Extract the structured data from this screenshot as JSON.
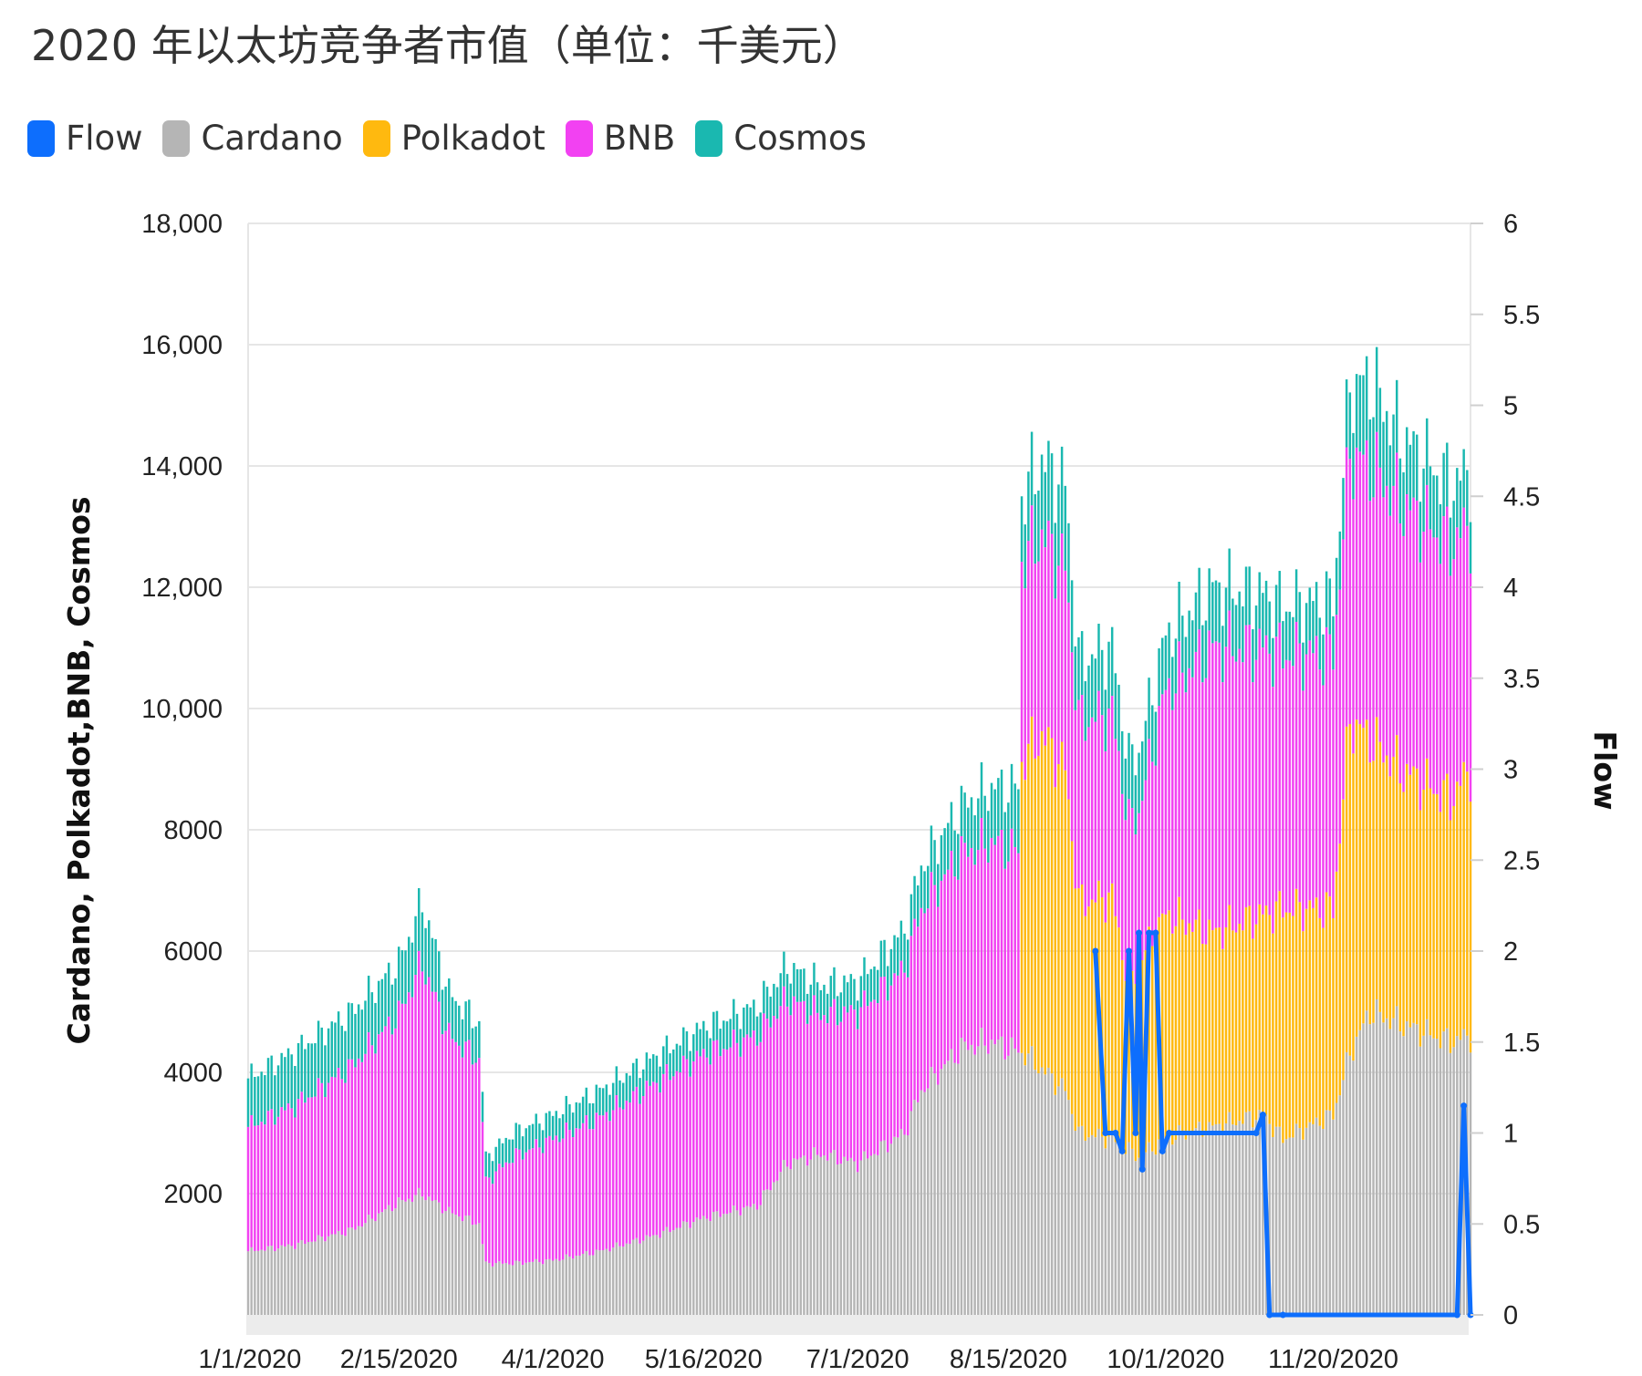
{
  "chart_data": {
    "type": "bar",
    "title": "2020 年以太坊竞争者市值（单位：千美元）",
    "stacked": true,
    "legend": [
      {
        "name": "Flow",
        "color": "#0d6efd"
      },
      {
        "name": "Cardano",
        "color": "#b5b5b5"
      },
      {
        "name": "Polkadot",
        "color": "#ffb90f"
      },
      {
        "name": "BNB",
        "color": "#f241f2"
      },
      {
        "name": "Cosmos",
        "color": "#1ab8b0"
      }
    ],
    "ylabel_left": "Cardano, Polkadot,BNB, Cosmos",
    "ylabel_right": "Flow",
    "ylim_left": [
      0,
      18000
    ],
    "ylim_right": [
      0,
      6
    ],
    "yticks_left": [
      "18,000",
      "16,000",
      "14,000",
      "12,000",
      "10,000",
      "8000",
      "6000",
      "4000",
      "2000"
    ],
    "yticks_right": [
      "6",
      "5.5",
      "5",
      "4.5",
      "4",
      "3.5",
      "3",
      "2.5",
      "2",
      "1.5",
      "1",
      "0.5",
      "0"
    ],
    "xticks": [
      "1/1/2020",
      "2/15/2020",
      "4/1/2020",
      "5/16/2020",
      "7/1/2020",
      "8/15/2020",
      "10/1/2020",
      "11/20/2020"
    ],
    "grid": true,
    "legend_position": "top-left",
    "date_range": [
      "1/1/2020",
      "12/31/2020"
    ],
    "series": [
      {
        "name": "Cardano",
        "axis": "left",
        "type": "stacked-bar",
        "points": [
          [
            "1/1/2020",
            1050
          ],
          [
            "1/15/2020",
            1150
          ],
          [
            "2/1/2020",
            1400
          ],
          [
            "2/15/2020",
            1850
          ],
          [
            "2/22/2020",
            2000
          ],
          [
            "3/1/2020",
            1700
          ],
          [
            "3/10/2020",
            1500
          ],
          [
            "3/12/2020",
            850
          ],
          [
            "3/20/2020",
            850
          ],
          [
            "4/1/2020",
            900
          ],
          [
            "4/15/2020",
            1050
          ],
          [
            "5/1/2020",
            1300
          ],
          [
            "5/16/2020",
            1600
          ],
          [
            "6/1/2020",
            1800
          ],
          [
            "6/10/2020",
            2500
          ],
          [
            "6/20/2020",
            2650
          ],
          [
            "7/1/2020",
            2500
          ],
          [
            "7/15/2020",
            3000
          ],
          [
            "7/20/2020",
            3700
          ],
          [
            "8/1/2020",
            4400
          ],
          [
            "8/10/2020",
            4500
          ],
          [
            "8/20/2020",
            4300
          ],
          [
            "9/1/2020",
            3700
          ],
          [
            "9/5/2020",
            3000
          ],
          [
            "9/15/2020",
            2900
          ],
          [
            "9/23/2020",
            2600
          ],
          [
            "10/1/2020",
            2900
          ],
          [
            "10/15/2020",
            3100
          ],
          [
            "10/30/2020",
            3300
          ],
          [
            "11/5/2020",
            2900
          ],
          [
            "11/20/2020",
            3300
          ],
          [
            "11/25/2020",
            4300
          ],
          [
            "12/1/2020",
            5000
          ],
          [
            "12/10/2020",
            4800
          ],
          [
            "12/25/2020",
            4500
          ],
          [
            "12/31/2020",
            4600
          ]
        ]
      },
      {
        "name": "Polkadot",
        "axis": "left",
        "type": "stacked-bar",
        "points": [
          [
            "8/19/2020",
            4800
          ],
          [
            "8/25/2020",
            5500
          ],
          [
            "9/1/2020",
            5300
          ],
          [
            "9/5/2020",
            3800
          ],
          [
            "9/15/2020",
            4000
          ],
          [
            "9/20/2020",
            2700
          ],
          [
            "9/23/2020",
            3200
          ],
          [
            "10/1/2020",
            3700
          ],
          [
            "10/15/2020",
            3200
          ],
          [
            "10/30/2020",
            3300
          ],
          [
            "11/5/2020",
            3800
          ],
          [
            "11/20/2020",
            3400
          ],
          [
            "11/25/2020",
            5500
          ],
          [
            "12/1/2020",
            4500
          ],
          [
            "12/10/2020",
            4200
          ],
          [
            "12/25/2020",
            4000
          ],
          [
            "12/31/2020",
            4400
          ]
        ]
      },
      {
        "name": "BNB",
        "axis": "left",
        "type": "stacked-bar",
        "points": [
          [
            "1/1/2020",
            2050
          ],
          [
            "1/15/2020",
            2300
          ],
          [
            "2/1/2020",
            2700
          ],
          [
            "2/15/2020",
            3100
          ],
          [
            "2/22/2020",
            3800
          ],
          [
            "3/1/2020",
            2900
          ],
          [
            "3/10/2020",
            2700
          ],
          [
            "3/12/2020",
            1350
          ],
          [
            "3/20/2020",
            1750
          ],
          [
            "4/1/2020",
            2000
          ],
          [
            "4/15/2020",
            2200
          ],
          [
            "5/1/2020",
            2500
          ],
          [
            "5/16/2020",
            2700
          ],
          [
            "6/1/2020",
            2800
          ],
          [
            "6/10/2020",
            2700
          ],
          [
            "6/20/2020",
            2300
          ],
          [
            "7/1/2020",
            2500
          ],
          [
            "7/15/2020",
            2700
          ],
          [
            "7/20/2020",
            3000
          ],
          [
            "8/1/2020",
            3200
          ],
          [
            "8/10/2020",
            3300
          ],
          [
            "8/20/2020",
            3300
          ],
          [
            "9/1/2020",
            3300
          ],
          [
            "9/5/2020",
            3000
          ],
          [
            "9/15/2020",
            3000
          ],
          [
            "9/23/2020",
            2500
          ],
          [
            "10/1/2020",
            3700
          ],
          [
            "10/15/2020",
            4700
          ],
          [
            "10/30/2020",
            4400
          ],
          [
            "11/5/2020",
            4200
          ],
          [
            "11/20/2020",
            4200
          ],
          [
            "11/25/2020",
            4400
          ],
          [
            "12/1/2020",
            4500
          ],
          [
            "12/10/2020",
            4400
          ],
          [
            "12/25/2020",
            4200
          ],
          [
            "12/31/2020",
            4000
          ]
        ]
      },
      {
        "name": "Cosmos",
        "axis": "left",
        "type": "stacked-bar",
        "points": [
          [
            "1/1/2020",
            800
          ],
          [
            "1/15/2020",
            900
          ],
          [
            "2/1/2020",
            900
          ],
          [
            "2/15/2020",
            850
          ],
          [
            "2/22/2020",
            1000
          ],
          [
            "3/1/2020",
            700
          ],
          [
            "3/10/2020",
            600
          ],
          [
            "3/12/2020",
            400
          ],
          [
            "3/20/2020",
            400
          ],
          [
            "4/1/2020",
            400
          ],
          [
            "4/15/2020",
            450
          ],
          [
            "5/1/2020",
            450
          ],
          [
            "5/16/2020",
            450
          ],
          [
            "6/1/2020",
            500
          ],
          [
            "6/10/2020",
            550
          ],
          [
            "6/20/2020",
            500
          ],
          [
            "7/1/2020",
            500
          ],
          [
            "7/15/2020",
            650
          ],
          [
            "7/20/2020",
            700
          ],
          [
            "8/1/2020",
            800
          ],
          [
            "8/10/2020",
            900
          ],
          [
            "8/20/2020",
            1100
          ],
          [
            "9/1/2020",
            1400
          ],
          [
            "9/5/2020",
            1000
          ],
          [
            "9/15/2020",
            1100
          ],
          [
            "9/23/2020",
            1000
          ],
          [
            "10/1/2020",
            900
          ],
          [
            "10/15/2020",
            1000
          ],
          [
            "10/30/2020",
            900
          ],
          [
            "11/5/2020",
            800
          ],
          [
            "11/20/2020",
            900
          ],
          [
            "11/25/2020",
            1100
          ],
          [
            "12/1/2020",
            1400
          ],
          [
            "12/10/2020",
            1100
          ],
          [
            "12/25/2020",
            1000
          ],
          [
            "12/31/2020",
            900
          ]
        ]
      },
      {
        "name": "Flow",
        "axis": "right",
        "type": "line",
        "points": [
          [
            "9/10/2020",
            2
          ],
          [
            "9/13/2020",
            1
          ],
          [
            "9/16/2020",
            1
          ],
          [
            "9/18/2020",
            0.9
          ],
          [
            "9/20/2020",
            2
          ],
          [
            "9/22/2020",
            1
          ],
          [
            "9/23/2020",
            2.1
          ],
          [
            "9/24/2020",
            0.8
          ],
          [
            "9/26/2020",
            2.1
          ],
          [
            "9/28/2020",
            2.1
          ],
          [
            "9/30/2020",
            0.9
          ],
          [
            "10/2/2020",
            1
          ],
          [
            "10/28/2020",
            1
          ],
          [
            "10/30/2020",
            1.1
          ],
          [
            "11/1/2020",
            0
          ],
          [
            "11/5/2020",
            0
          ],
          [
            "12/27/2020",
            0
          ],
          [
            "12/29/2020",
            1.15
          ],
          [
            "12/31/2020",
            0
          ]
        ]
      }
    ]
  }
}
